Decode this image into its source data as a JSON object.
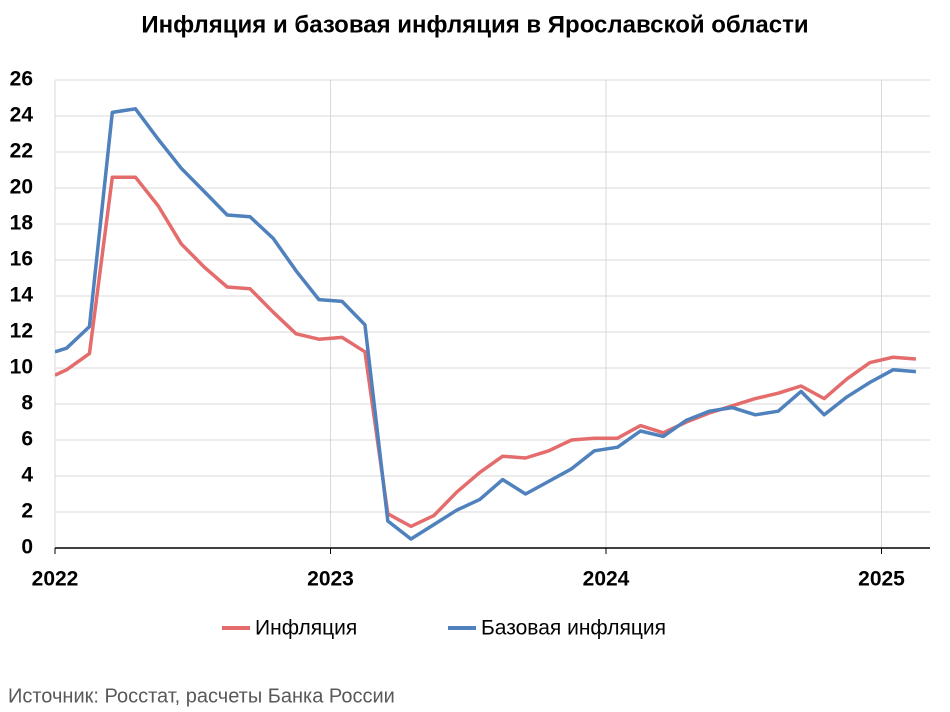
{
  "chart_data": {
    "type": "line",
    "title": "Инфляция и базовая инфляция в Ярославской области",
    "source": "Источник: Росстат, расчеты Банка России",
    "x": [
      2022,
      2022.042,
      2022.125,
      2022.208,
      2022.292,
      2022.375,
      2022.458,
      2022.542,
      2022.625,
      2022.708,
      2022.792,
      2022.875,
      2022.958,
      2023.042,
      2023.125,
      2023.208,
      2023.292,
      2023.375,
      2023.458,
      2023.542,
      2023.625,
      2023.708,
      2023.792,
      2023.875,
      2023.958,
      2024.042,
      2024.125,
      2024.208,
      2024.292,
      2024.375,
      2024.458,
      2024.542,
      2024.625,
      2024.708,
      2024.792,
      2024.875,
      2024.958,
      2025.042,
      2025.125
    ],
    "series": [
      {
        "name": "Инфляция",
        "color": "#e46c6c",
        "values": [
          9.6,
          9.9,
          10.8,
          20.6,
          20.6,
          19.0,
          16.9,
          15.6,
          14.5,
          14.4,
          13.1,
          11.9,
          11.6,
          11.7,
          10.9,
          1.9,
          1.2,
          1.8,
          3.1,
          4.2,
          5.1,
          5.0,
          5.4,
          6.0,
          6.1,
          6.1,
          6.8,
          6.4,
          7.0,
          7.5,
          7.9,
          8.3,
          8.6,
          9.0,
          8.3,
          9.4,
          10.3,
          10.6,
          10.5
        ]
      },
      {
        "name": "Базовая инфляция",
        "color": "#4f81bd",
        "values": [
          10.9,
          11.1,
          12.3,
          24.2,
          24.4,
          22.7,
          21.1,
          19.8,
          18.5,
          18.4,
          17.2,
          15.4,
          13.8,
          13.7,
          12.4,
          1.5,
          0.5,
          1.3,
          2.1,
          2.7,
          3.8,
          3.0,
          3.7,
          4.4,
          5.4,
          5.6,
          6.5,
          6.2,
          7.1,
          7.6,
          7.8,
          7.4,
          7.6,
          8.7,
          7.4,
          8.4,
          9.2,
          9.9,
          9.8
        ]
      }
    ],
    "xlim": [
      2022,
      2025.176
    ],
    "xticks": [
      2022,
      2023,
      2024,
      2025
    ],
    "ylim": [
      0,
      26
    ],
    "yticks": [
      0,
      2,
      4,
      6,
      8,
      10,
      12,
      14,
      16,
      18,
      20,
      22,
      24,
      26
    ],
    "grid": true,
    "legend": "bottom"
  }
}
